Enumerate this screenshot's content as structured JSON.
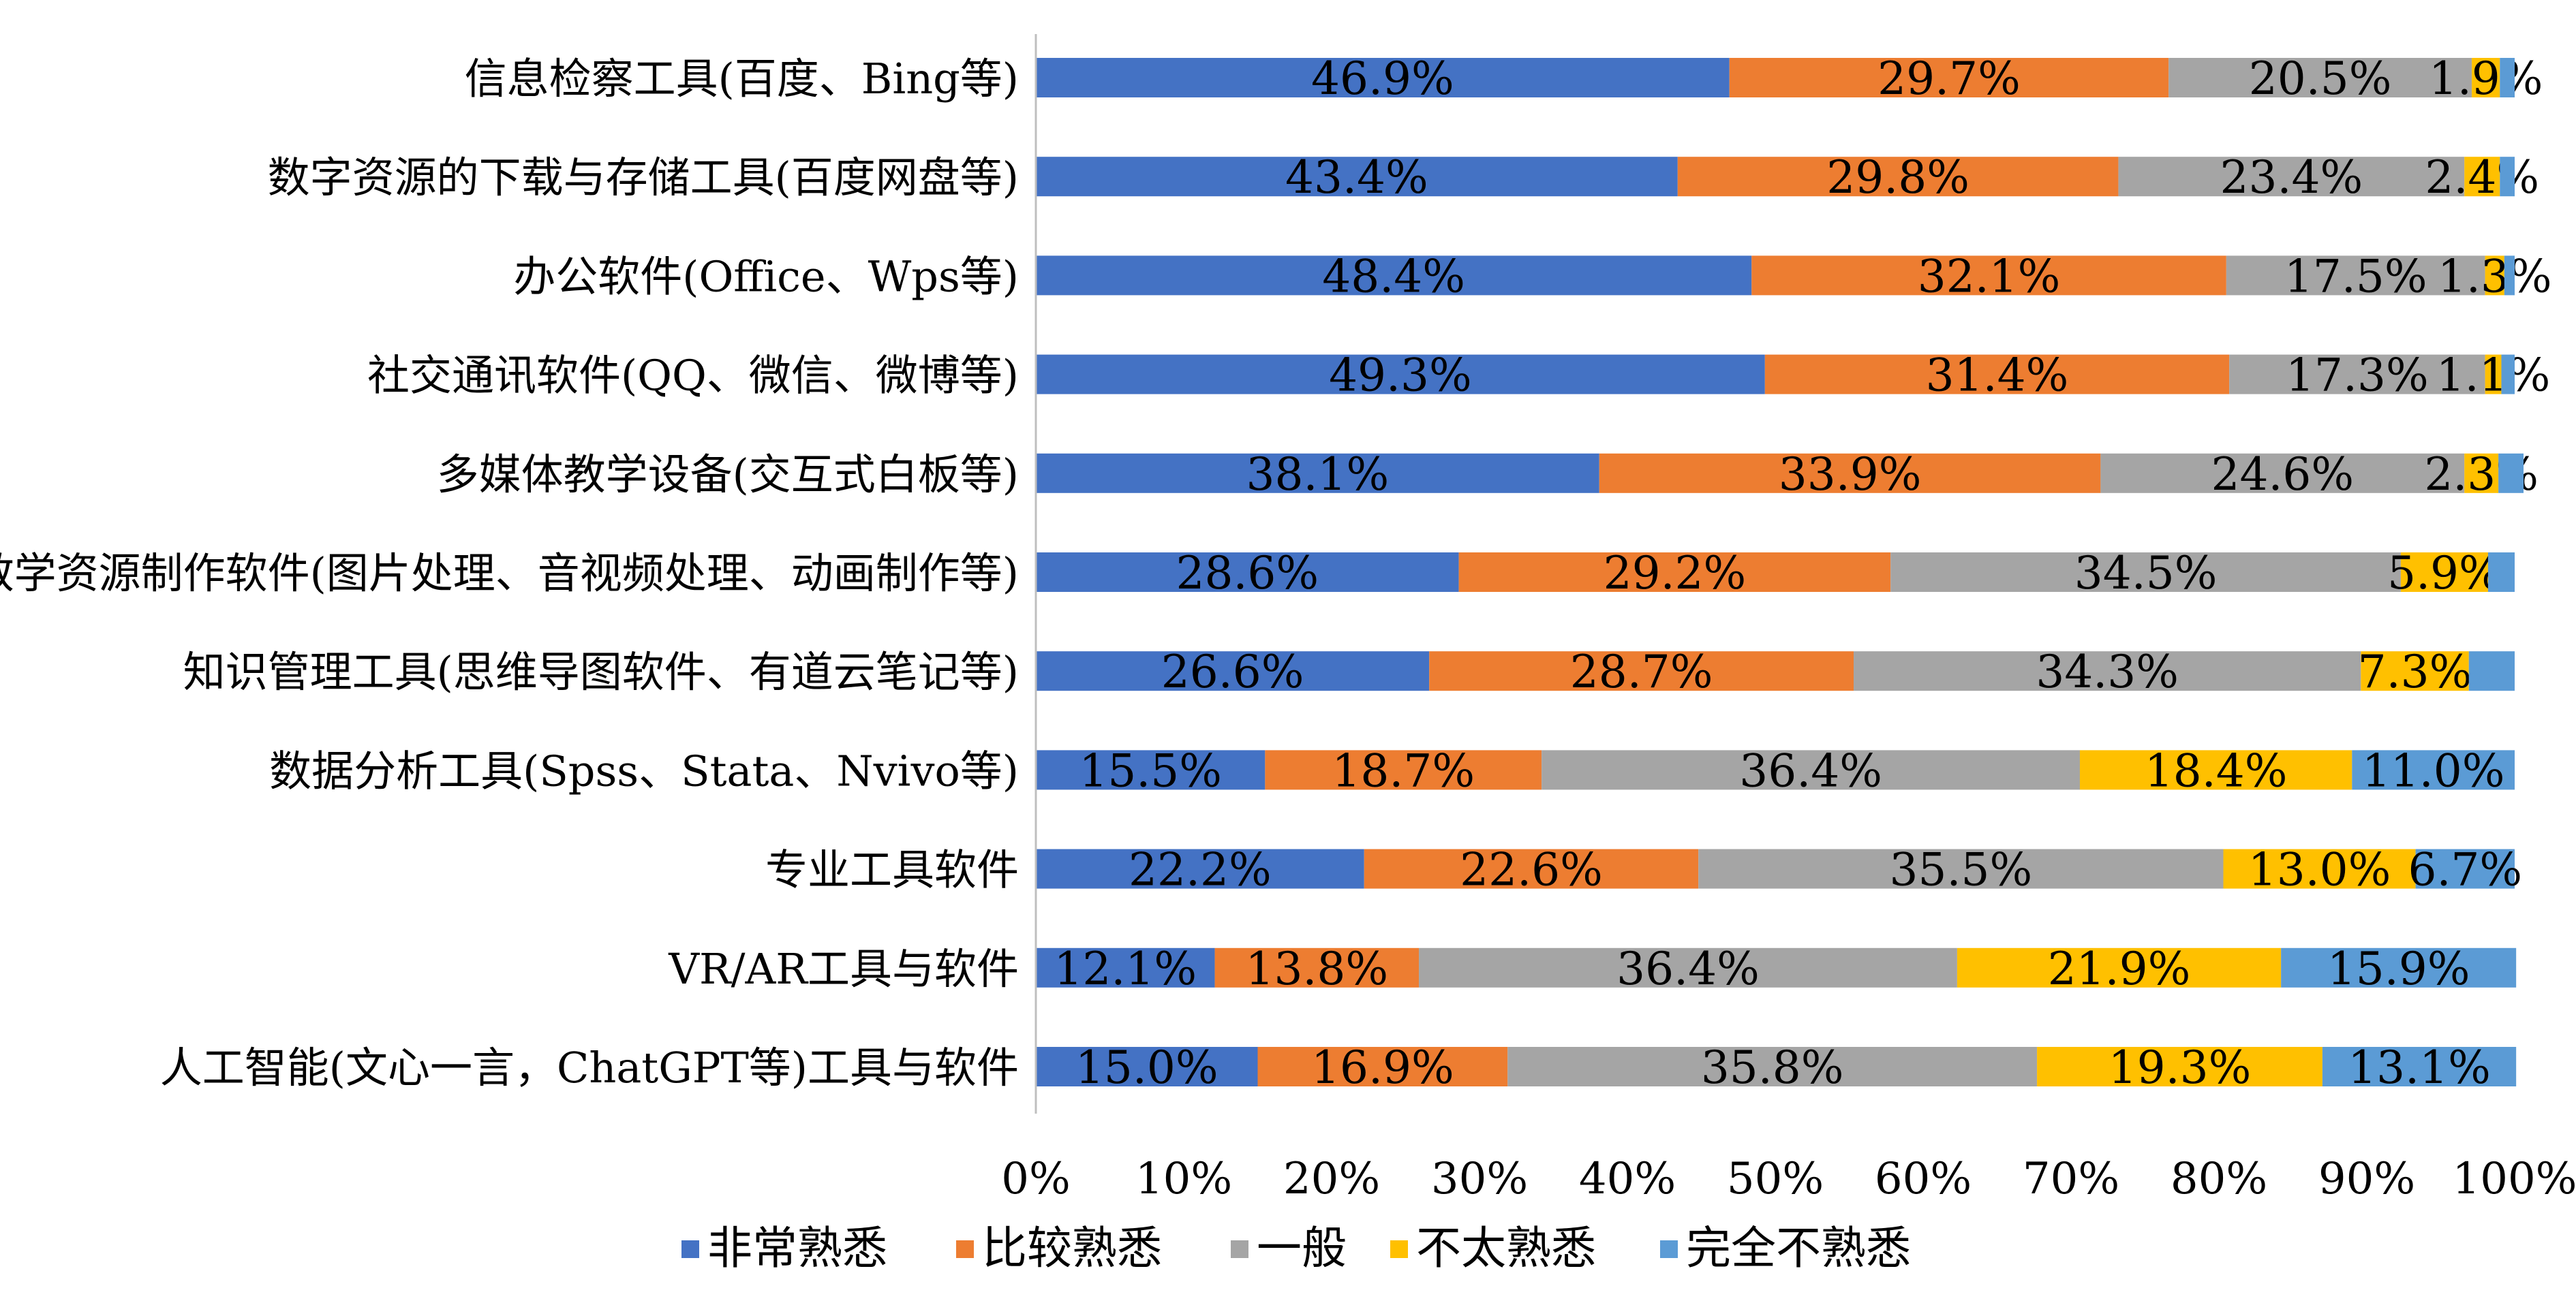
{
  "chart_data": {
    "type": "bar",
    "orientation": "horizontal",
    "stacked": "percent",
    "title": "",
    "xlabel": "",
    "ylabel": "",
    "xlim": [
      0,
      100
    ],
    "x_ticks": [
      "0%",
      "10%",
      "20%",
      "30%",
      "40%",
      "50%",
      "60%",
      "70%",
      "80%",
      "90%",
      "100%"
    ],
    "grid": false,
    "legend_position": "bottom",
    "categories": [
      "信息检察工具(百度、Bing等)",
      "数字资源的下载与存储工具(百度网盘等)",
      "办公软件(Office、Wps等)",
      "社交通讯软件(QQ、微信、微博等)",
      "多媒体教学设备(交互式白板等)",
      "教学资源制作软件(图片处理、音视频处理、动画制作等)",
      "知识管理工具(思维导图软件、有道云笔记等)",
      "数据分析工具(Spss、Stata、Nvivo等)",
      "专业工具软件",
      "VR/AR工具与软件",
      "人工智能(文心一言，ChatGPT等)工具与软件"
    ],
    "series": [
      {
        "name": "非常熟悉",
        "color": "#4472C4",
        "values": [
          46.9,
          43.4,
          48.4,
          49.3,
          38.1,
          28.6,
          26.6,
          15.5,
          22.2,
          12.1,
          15.0
        ],
        "labels": [
          "46.9%",
          "43.4%",
          "48.4%",
          "49.3%",
          "38.1%",
          "28.6%",
          "26.6%",
          "15.5%",
          "22.2%",
          "12.1%",
          "15.0%"
        ]
      },
      {
        "name": "比较熟悉",
        "color": "#ED7D31",
        "values": [
          29.7,
          29.8,
          32.1,
          31.4,
          33.9,
          29.2,
          28.7,
          18.7,
          22.6,
          13.8,
          16.9
        ],
        "labels": [
          "29.7%",
          "29.8%",
          "32.1%",
          "31.4%",
          "33.9%",
          "29.2%",
          "28.7%",
          "18.7%",
          "22.6%",
          "13.8%",
          "16.9%"
        ]
      },
      {
        "name": "一般",
        "color": "#A5A5A5",
        "values": [
          20.5,
          23.4,
          17.5,
          17.3,
          24.6,
          34.5,
          34.3,
          36.4,
          35.5,
          36.4,
          35.8
        ],
        "labels": [
          "20.5%",
          "23.4%",
          "17.5%",
          "17.3%",
          "24.6%",
          "34.5%",
          "34.3%",
          "36.4%",
          "35.5%",
          "36.4%",
          "35.8%"
        ]
      },
      {
        "name": "不太熟悉",
        "color": "#FFC000",
        "values": [
          1.9,
          2.4,
          1.3,
          1.1,
          2.3,
          5.9,
          7.3,
          18.4,
          13.0,
          21.9,
          19.3
        ],
        "labels": [
          "1.9%",
          "2.4%",
          "1.3%",
          "1.1%",
          "2.3%",
          "5.9%",
          "7.3%",
          "18.4%",
          "13.0%",
          "21.9%",
          "19.3%"
        ]
      },
      {
        "name": "完全不熟悉",
        "color": "#5B9BD5",
        "values": [
          1.0,
          1.0,
          0.7,
          0.9,
          1.7,
          1.8,
          3.1,
          11.0,
          6.7,
          15.9,
          13.1
        ],
        "labels": [
          "",
          "",
          "",
          "",
          "",
          "",
          "",
          "11.0%",
          "6.7%",
          "15.9%",
          "13.1%"
        ]
      }
    ]
  }
}
